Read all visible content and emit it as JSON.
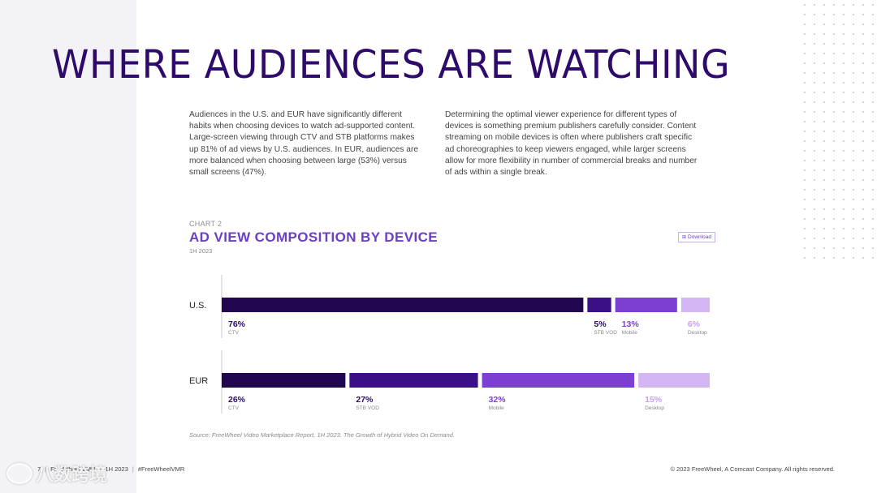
{
  "page": {
    "title": "WHERE AUDIENCES ARE WATCHING",
    "paragraph_left": "Audiences in the U.S. and EUR have significantly different habits when choosing devices to watch ad-supported content. Large-screen viewing through CTV and STB platforms makes up 81% of ad views by U.S. audiences. In EUR, audiences are more balanced when choosing between large (53%) versus small screens (47%).",
    "paragraph_right": "Determining the optimal viewer experience for different types of devices is something premium publishers carefully consider. Content streaming on mobile devices is often where publishers craft specific ad choreographies to keep viewers engaged, while larger screens allow for more flexibility in number of commercial breaks and number of ads within a single break."
  },
  "chart_header": {
    "kicker": "CHART 2",
    "title": "AD VIEW COMPOSITION BY DEVICE",
    "period": "1H 2023",
    "download_label": "Download",
    "download_icon": "download-icon"
  },
  "chart_data": {
    "type": "bar",
    "orientation": "horizontal",
    "stacked": true,
    "title": "AD VIEW COMPOSITION BY DEVICE",
    "subtitle": "1H 2023",
    "categories": [
      "U.S.",
      "EUR"
    ],
    "series": [
      {
        "name": "CTV",
        "values": [
          76,
          26
        ],
        "color": "#22064f"
      },
      {
        "name": "STB VOD",
        "values": [
          5,
          27
        ],
        "color": "#3b0f85"
      },
      {
        "name": "Mobile",
        "values": [
          13,
          32
        ],
        "color": "#7c3fd1"
      },
      {
        "name": "Desktop",
        "values": [
          6,
          15
        ],
        "color": "#d4b6f4"
      }
    ],
    "label_colors": [
      "#2b0c66",
      "#2b0c66",
      "#7c3fd1",
      "#c6a2ee"
    ],
    "value_suffix": "%",
    "xlim": [
      0,
      100
    ]
  },
  "source": "Source: FreeWheel Video Marketplace Report, 1H 2023. The Growth of Hybrid Video On Demand.",
  "footer": {
    "page_number": "7",
    "brand": "FreeWheel VMR",
    "period": "1H 2023",
    "hashtag": "#FreeWheelVMR",
    "separator": "|",
    "copyright": "© 2023 FreeWheel, A Comcast Company. All rights reserved."
  },
  "watermark": {
    "text": "八数跨境",
    "icon": "watermark-logo-icon"
  }
}
